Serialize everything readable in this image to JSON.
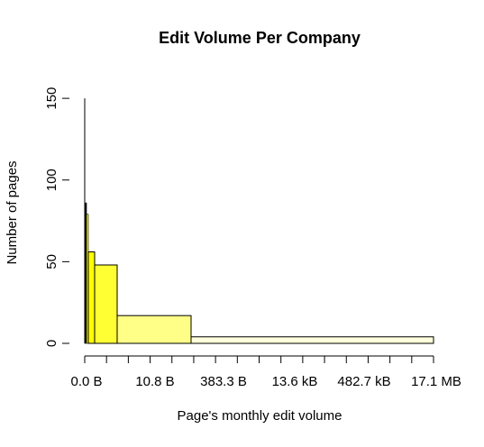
{
  "chart_data": {
    "type": "bar",
    "title": "Edit Volume Per Company",
    "xlabel": "Page's monthly edit volume",
    "ylabel": "Number of pages",
    "y_ticks": [
      0,
      50,
      100,
      150
    ],
    "ylim": [
      0,
      160
    ],
    "x_ticks": [
      "0.0 B",
      "10.8 B",
      "383.3 B",
      "13.6 kB",
      "482.7 kB",
      "17.1 MB"
    ],
    "x_axis_scale": "log",
    "grid": false,
    "legend": "none",
    "bins": [
      {
        "value": 86,
        "fill": "#000000"
      },
      {
        "value": 79,
        "fill": "#ffff00"
      },
      {
        "value": 56,
        "fill": "#ffff00"
      },
      {
        "value": 48,
        "fill": "#ffff33"
      },
      {
        "value": 17,
        "fill": "#ffff88"
      },
      {
        "value": 4,
        "fill": "#ffffdd"
      }
    ],
    "colors": {
      "axis": "#000000",
      "bar_stroke": "#000000"
    }
  }
}
